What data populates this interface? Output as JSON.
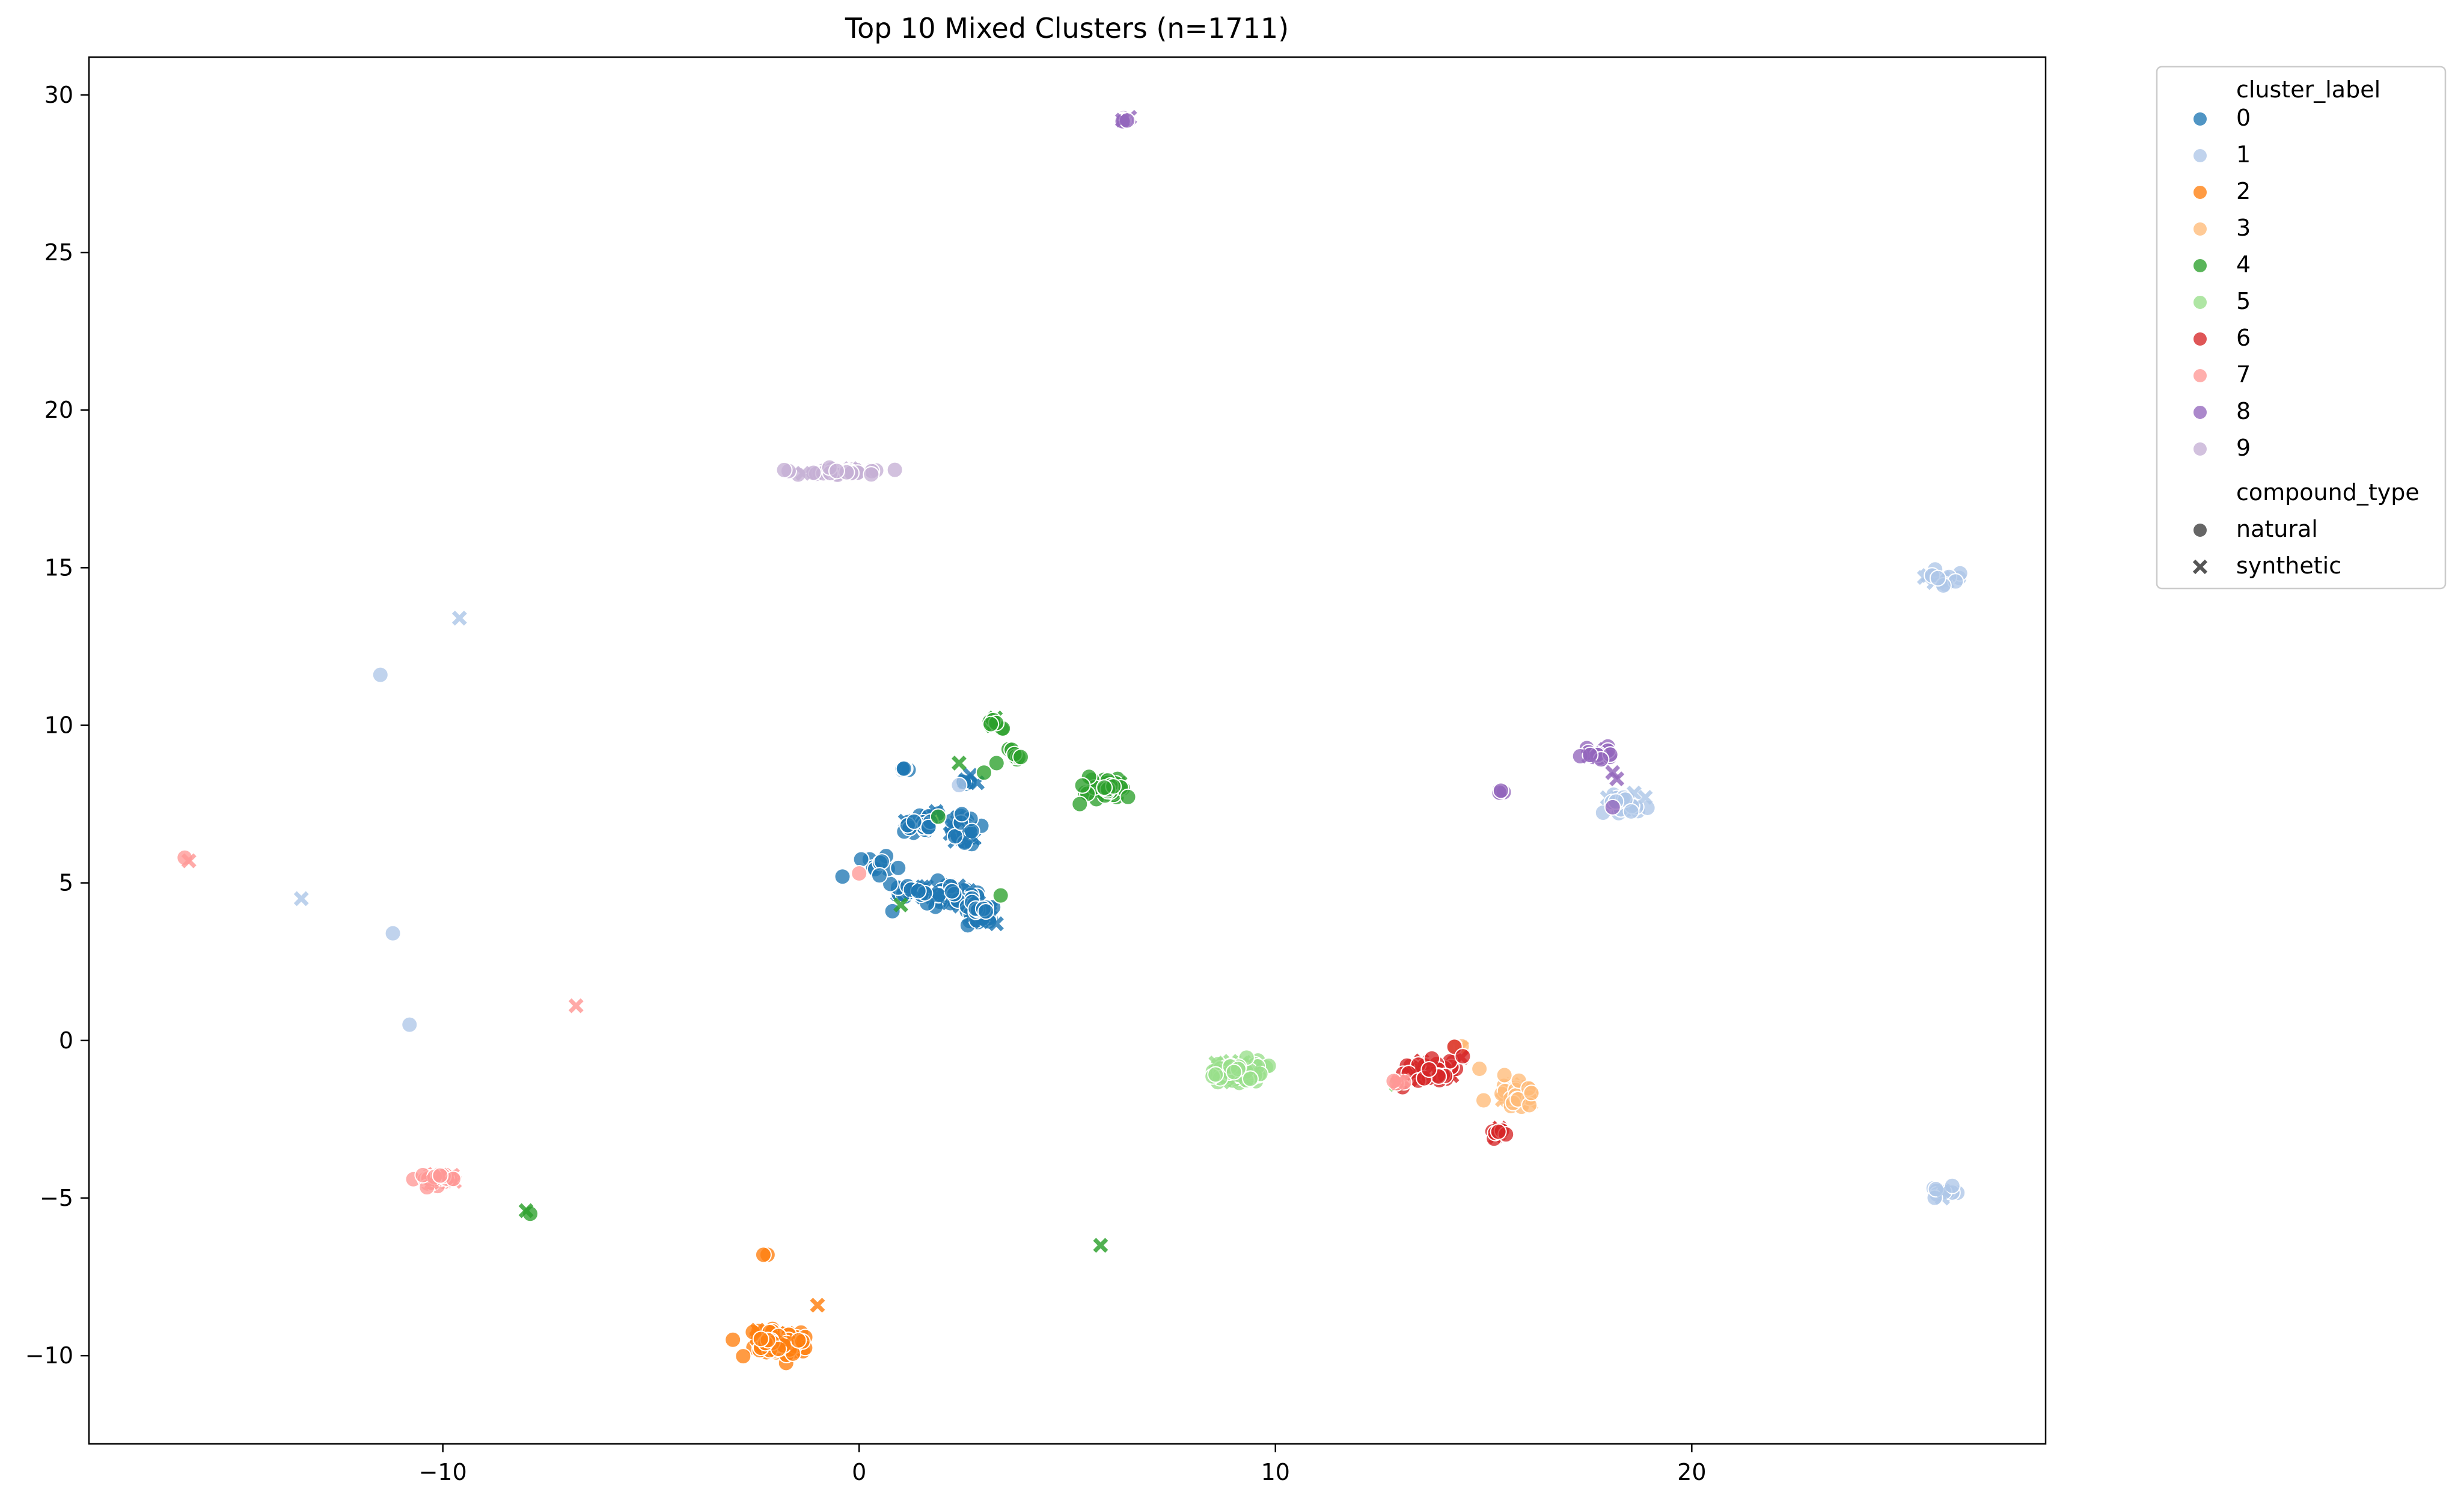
{
  "chart_data": {
    "type": "scatter",
    "title": "Top 10 Mixed Clusters (n=1711)",
    "xlabel": "",
    "ylabel": "",
    "xlim": [
      -18.5,
      28.5
    ],
    "ylim": [
      -12.8,
      31.2
    ],
    "xticks": [
      -10,
      0,
      10,
      20
    ],
    "yticks": [
      -10,
      -5,
      0,
      5,
      10,
      15,
      20,
      25,
      30
    ],
    "grid": false,
    "legend_placement": "outside-top-right",
    "hue_title": "cluster_label",
    "style_title": "compound_type",
    "style_entries": [
      {
        "name": "natural",
        "marker": "circle"
      },
      {
        "name": "synthetic",
        "marker": "x"
      }
    ],
    "series": [
      {
        "name": "0",
        "color": "#1f77b4",
        "clusters": [
          {
            "cx": 1.5,
            "cy": 6.9,
            "sx": 0.35,
            "sy": 0.35,
            "n": 30
          },
          {
            "cx": 2.5,
            "cy": 6.6,
            "sx": 0.3,
            "sy": 0.35,
            "n": 40
          },
          {
            "cx": 2.2,
            "cy": 4.6,
            "sx": 0.5,
            "sy": 0.25,
            "n": 50
          },
          {
            "cx": 3.0,
            "cy": 4.0,
            "sx": 0.3,
            "sy": 0.3,
            "n": 40
          },
          {
            "cx": 1.2,
            "cy": 4.8,
            "sx": 0.4,
            "sy": 0.2,
            "n": 25
          },
          {
            "cx": 0.5,
            "cy": 5.5,
            "sx": 0.3,
            "sy": 0.3,
            "n": 10
          },
          {
            "cx": 2.6,
            "cy": 8.2,
            "sx": 0.15,
            "sy": 0.1,
            "n": 8
          },
          {
            "cx": 1.1,
            "cy": 8.6,
            "sx": 0.1,
            "sy": 0.05,
            "n": 5
          }
        ],
        "points": [
          [
            -0.4,
            5.2
          ],
          [
            0.8,
            4.1
          ]
        ]
      },
      {
        "name": "1",
        "color": "#aec7e8",
        "clusters": [
          {
            "cx": 26.0,
            "cy": 14.6,
            "sx": 0.3,
            "sy": 0.2,
            "n": 15
          },
          {
            "cx": 26.0,
            "cy": -4.8,
            "sx": 0.25,
            "sy": 0.15,
            "n": 15
          },
          {
            "cx": 18.4,
            "cy": 7.5,
            "sx": 0.35,
            "sy": 0.3,
            "n": 25
          }
        ],
        "points": [
          [
            -9.6,
            13.4
          ],
          [
            -11.5,
            11.6
          ],
          [
            -13.4,
            4.5
          ],
          [
            -11.2,
            3.4
          ],
          [
            -10.8,
            0.5
          ],
          [
            2.4,
            8.1
          ]
        ]
      },
      {
        "name": "2",
        "color": "#ff7f0e",
        "clusters": [
          {
            "cx": -2.0,
            "cy": -9.5,
            "sx": 0.5,
            "sy": 0.35,
            "n": 90
          }
        ],
        "points": [
          [
            -2.2,
            -6.8
          ],
          [
            -2.3,
            -6.8
          ],
          [
            -1.0,
            -8.4
          ]
        ]
      },
      {
        "name": "3",
        "color": "#ffbb78",
        "clusters": [
          {
            "cx": 15.8,
            "cy": -1.7,
            "sx": 0.3,
            "sy": 0.3,
            "n": 40
          },
          {
            "cx": 14.4,
            "cy": -0.2,
            "sx": 0.1,
            "sy": 0.05,
            "n": 6
          }
        ],
        "points": [
          [
            15.0,
            -1.9
          ],
          [
            14.9,
            -0.9
          ],
          [
            15.5,
            -1.1
          ]
        ]
      },
      {
        "name": "4",
        "color": "#2ca02c",
        "clusters": [
          {
            "cx": 5.9,
            "cy": 8.0,
            "sx": 0.3,
            "sy": 0.3,
            "n": 35
          },
          {
            "cx": 3.3,
            "cy": 10.0,
            "sx": 0.15,
            "sy": 0.15,
            "n": 8
          },
          {
            "cx": 3.7,
            "cy": 9.1,
            "sx": 0.12,
            "sy": 0.15,
            "n": 8
          }
        ],
        "points": [
          [
            2.4,
            8.8
          ],
          [
            3.3,
            8.8
          ],
          [
            3.0,
            8.5
          ],
          [
            3.4,
            4.6
          ],
          [
            1.9,
            7.1
          ],
          [
            1.0,
            4.3
          ],
          [
            -7.9,
            -5.5
          ],
          [
            -8.0,
            -5.4
          ],
          [
            5.8,
            -6.5
          ],
          [
            5.3,
            7.5
          ]
        ]
      },
      {
        "name": "5",
        "color": "#98df8a",
        "clusters": [
          {
            "cx": 9.1,
            "cy": -1.0,
            "sx": 0.45,
            "sy": 0.22,
            "n": 110
          }
        ],
        "points": [
          [
            12.9,
            -1.4
          ]
        ]
      },
      {
        "name": "6",
        "color": "#d62728",
        "clusters": [
          {
            "cx": 13.8,
            "cy": -1.0,
            "sx": 0.45,
            "sy": 0.3,
            "n": 60
          },
          {
            "cx": 15.3,
            "cy": -2.9,
            "sx": 0.15,
            "sy": 0.12,
            "n": 12
          }
        ],
        "points": [
          [
            14.3,
            -0.2
          ],
          [
            14.5,
            -0.5
          ]
        ]
      },
      {
        "name": "7",
        "color": "#ff9896",
        "clusters": [
          {
            "cx": -10.1,
            "cy": -4.4,
            "sx": 0.3,
            "sy": 0.18,
            "n": 40
          },
          {
            "cx": 13.0,
            "cy": -1.3,
            "sx": 0.15,
            "sy": 0.05,
            "n": 6
          }
        ],
        "points": [
          [
            -16.2,
            5.8
          ],
          [
            -16.1,
            5.7
          ],
          [
            -6.8,
            1.1
          ],
          [
            0.0,
            5.3
          ]
        ]
      },
      {
        "name": "8",
        "color": "#9467bd",
        "clusters": [
          {
            "cx": 17.7,
            "cy": 9.1,
            "sx": 0.25,
            "sy": 0.18,
            "n": 22
          },
          {
            "cx": 6.4,
            "cy": 29.2,
            "sx": 0.08,
            "sy": 0.05,
            "n": 8
          },
          {
            "cx": 15.4,
            "cy": 7.9,
            "sx": 0.06,
            "sy": 0.06,
            "n": 5
          }
        ],
        "points": [
          [
            18.1,
            8.5
          ],
          [
            18.2,
            8.3
          ],
          [
            18.1,
            7.4
          ]
        ]
      },
      {
        "name": "9",
        "color": "#c5b0d5",
        "clusters": [
          {
            "cx": -0.4,
            "cy": 18.05,
            "sx": 0.7,
            "sy": 0.08,
            "n": 40
          }
        ],
        "points": [
          [
            -1.8,
            18.1
          ]
        ]
      }
    ]
  }
}
